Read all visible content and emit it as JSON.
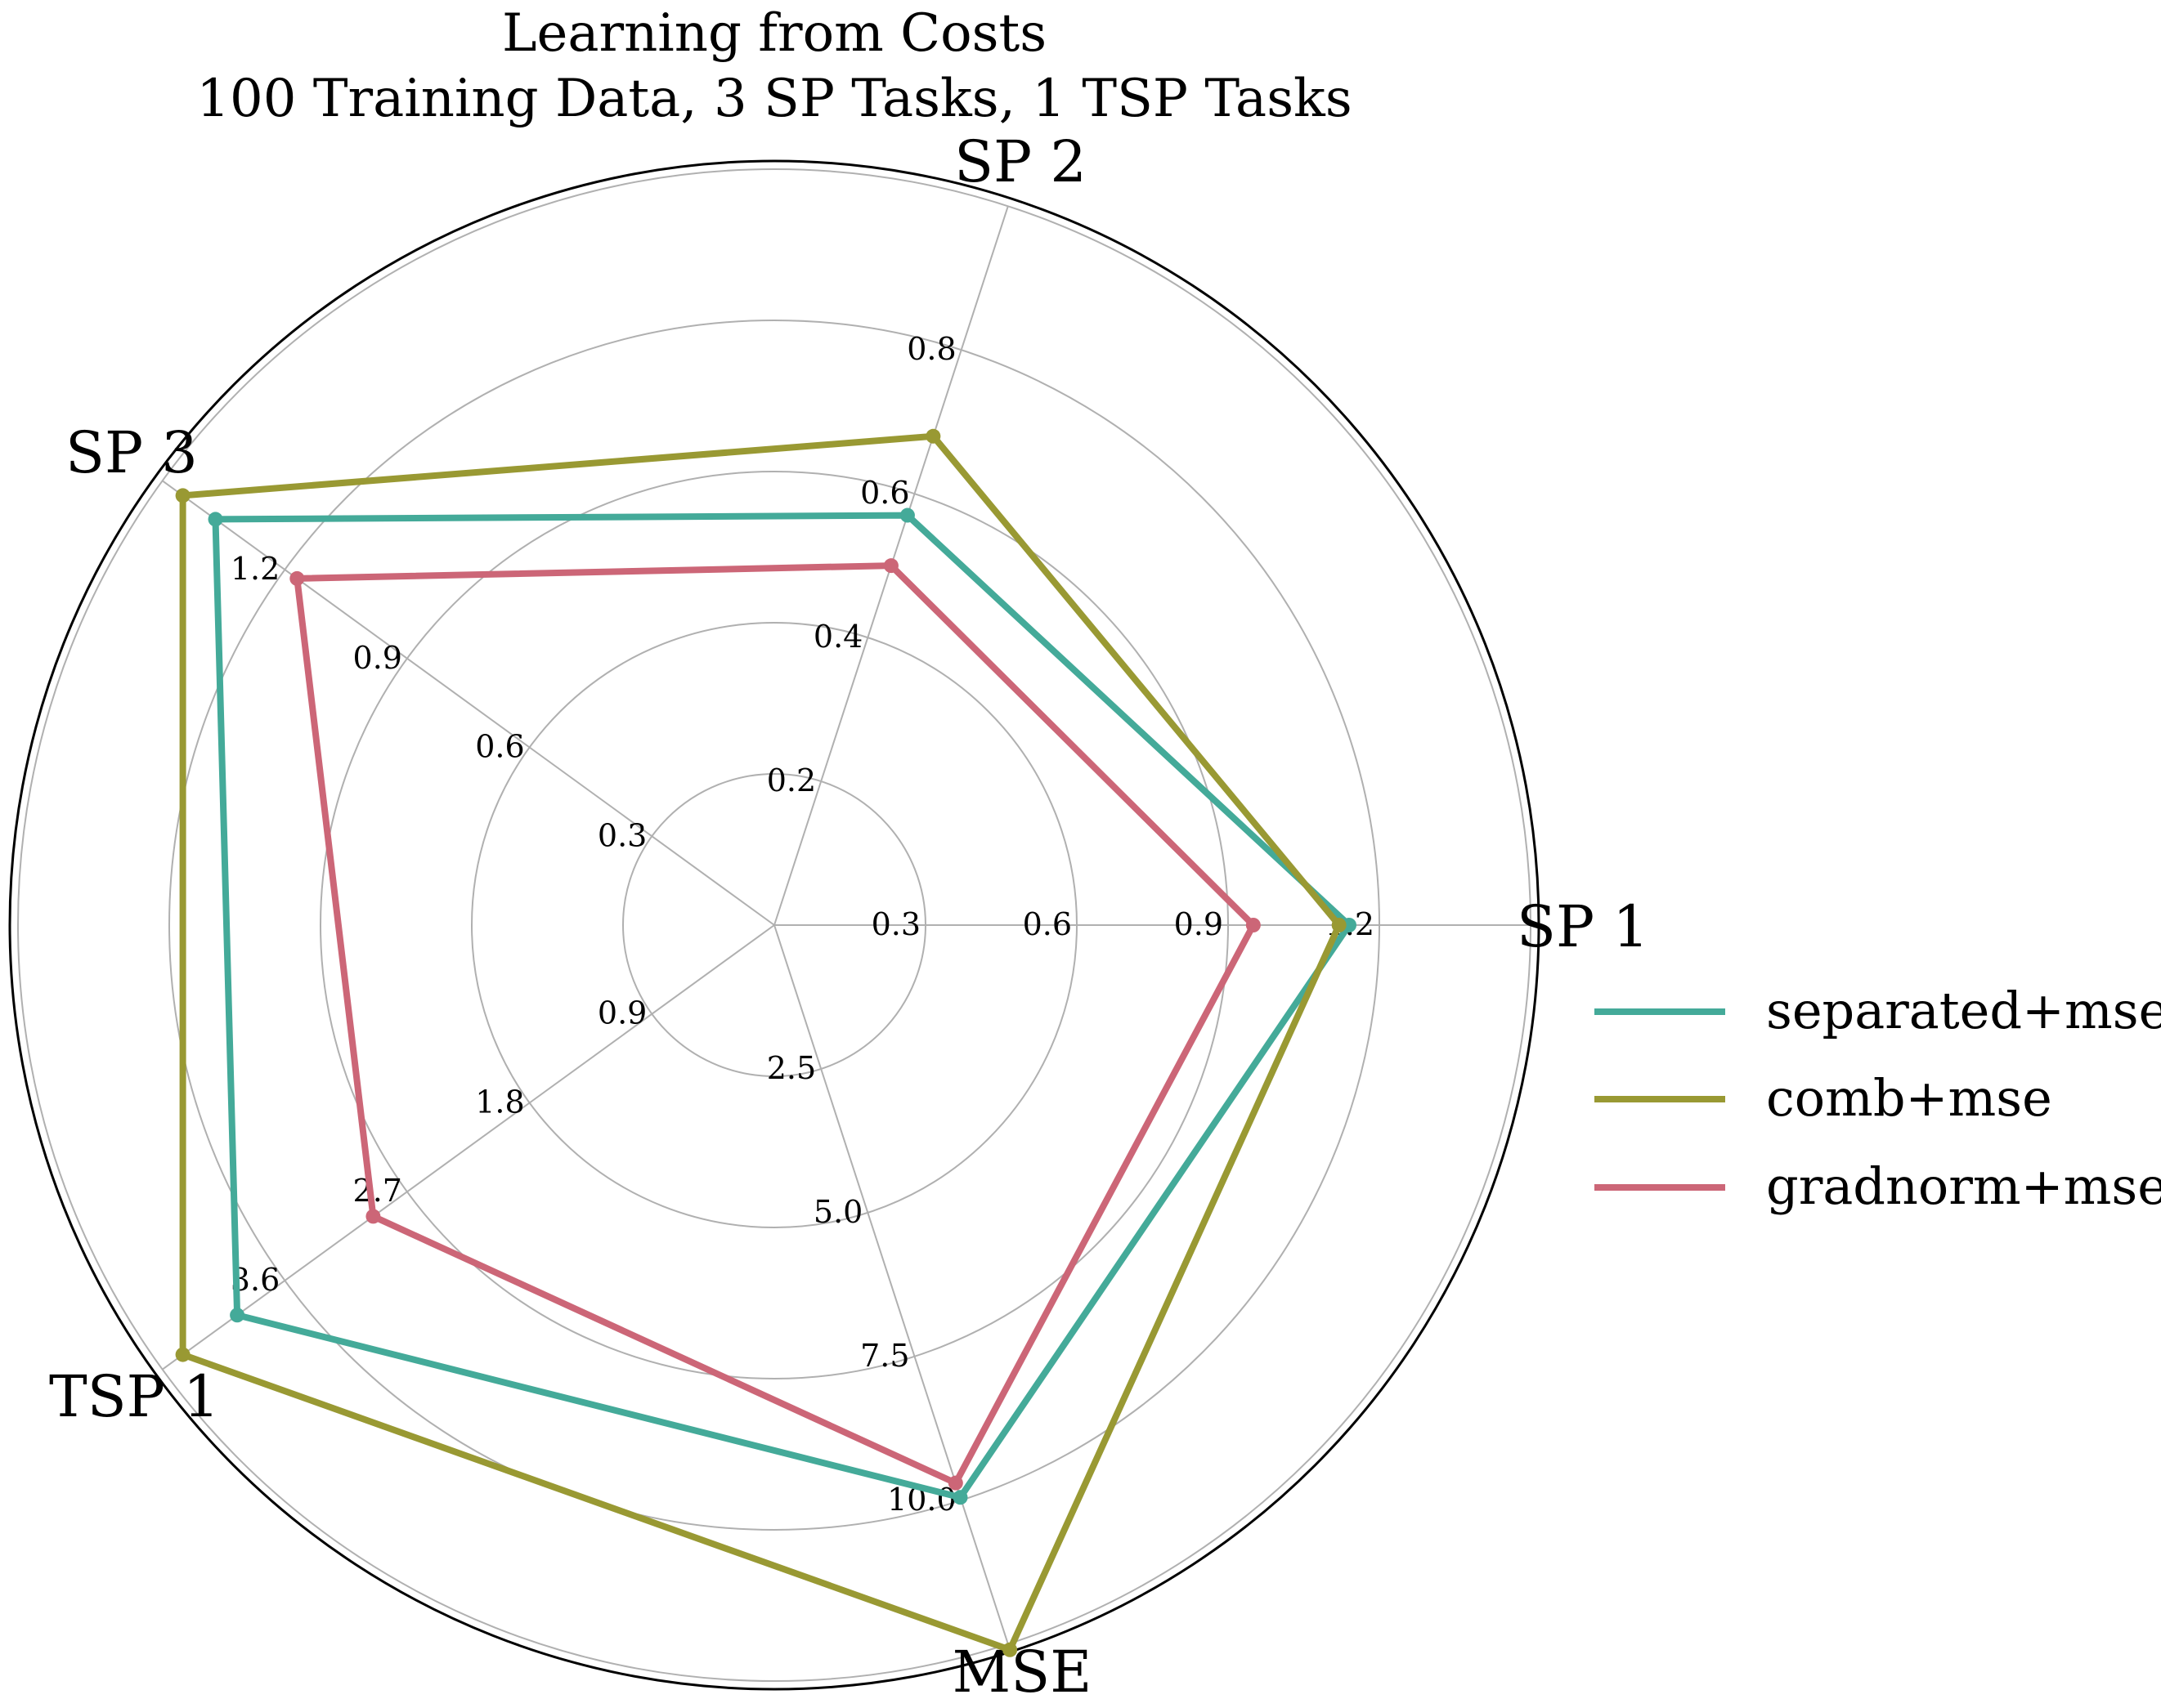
{
  "chart_data": {
    "type": "radar",
    "title_lines": [
      "Learning from Costs",
      "100 Training Data, 3 SP Tasks, 1 TSP Tasks"
    ],
    "axes": [
      {
        "label": "SP 1",
        "ticks": [
          "0.3",
          "0.6",
          "0.9",
          "1.2"
        ],
        "ticks_values": [
          0.3,
          0.6,
          0.9,
          1.2
        ],
        "max": 1.5
      },
      {
        "label": "SP 2",
        "ticks": [
          "0.2",
          "0.4",
          "0.6",
          "0.8"
        ],
        "ticks_values": [
          0.2,
          0.4,
          0.6,
          0.8
        ],
        "max": 1.0
      },
      {
        "label": "SP 3",
        "ticks": [
          "0.3",
          "0.6",
          "0.9",
          "1.2"
        ],
        "ticks_values": [
          0.3,
          0.6,
          0.9,
          1.2
        ],
        "max": 1.5
      },
      {
        "label": "TSP 1",
        "ticks": [
          "0.9",
          "1.8",
          "2.7",
          "3.6"
        ],
        "ticks_values": [
          0.9,
          1.8,
          2.7,
          3.6
        ],
        "max": 4.5
      },
      {
        "label": "MSE",
        "ticks": [
          "2.5",
          "5.0",
          "7.5",
          "10.0"
        ],
        "ticks_values": [
          2.5,
          5.0,
          7.5,
          10.0
        ],
        "max": 12.5
      }
    ],
    "series": [
      {
        "name": "separated+mse",
        "color": "#44aa99",
        "values": [
          1.14,
          0.57,
          1.37,
          3.95,
          9.95
        ]
      },
      {
        "name": "comb+mse",
        "color": "#999933",
        "values": [
          1.12,
          0.68,
          1.45,
          4.35,
          12.6
        ]
      },
      {
        "name": "gradnorm+mse",
        "color": "#cc6677",
        "values": [
          0.95,
          0.5,
          1.17,
          2.95,
          9.7
        ]
      }
    ],
    "grid": true,
    "legend_placement": "right"
  }
}
